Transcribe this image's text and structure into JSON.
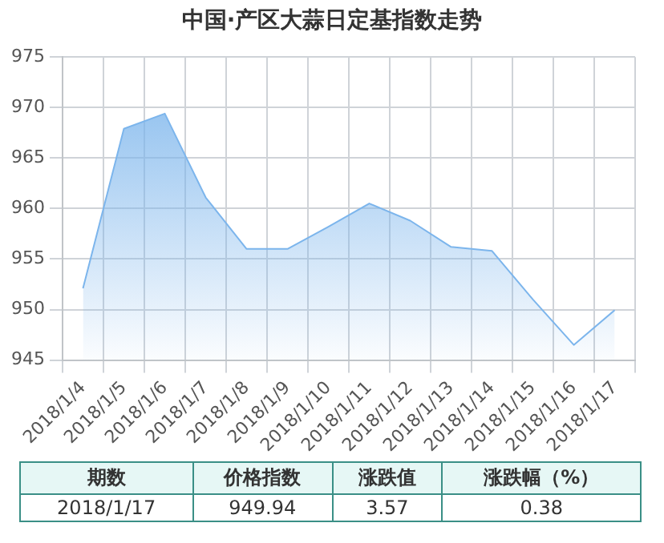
{
  "chart_data": {
    "type": "area",
    "title": "中国·产区大蒜日定基指数走势",
    "categories": [
      "2018/1/4",
      "2018/1/5",
      "2018/1/6",
      "2018/1/7",
      "2018/1/8",
      "2018/1/9",
      "2018/1/10",
      "2018/1/11",
      "2018/1/12",
      "2018/1/13",
      "2018/1/14",
      "2018/1/15",
      "2018/1/16",
      "2018/1/17"
    ],
    "values": [
      952.1,
      967.9,
      969.4,
      961.1,
      956.0,
      956.0,
      958.2,
      960.5,
      958.8,
      956.2,
      955.8,
      951.0,
      946.5,
      949.94
    ],
    "color": "#7cb5ec",
    "ylim": [
      945,
      975
    ],
    "yticks": [
      945,
      950,
      955,
      960,
      965,
      970,
      975
    ],
    "grid": true,
    "annotations": [
      "期数",
      "价格指数",
      "涨跌值",
      "涨跌幅（%）",
      "2018/1/17",
      "949.94",
      "3.57",
      "0.38"
    ]
  }
}
